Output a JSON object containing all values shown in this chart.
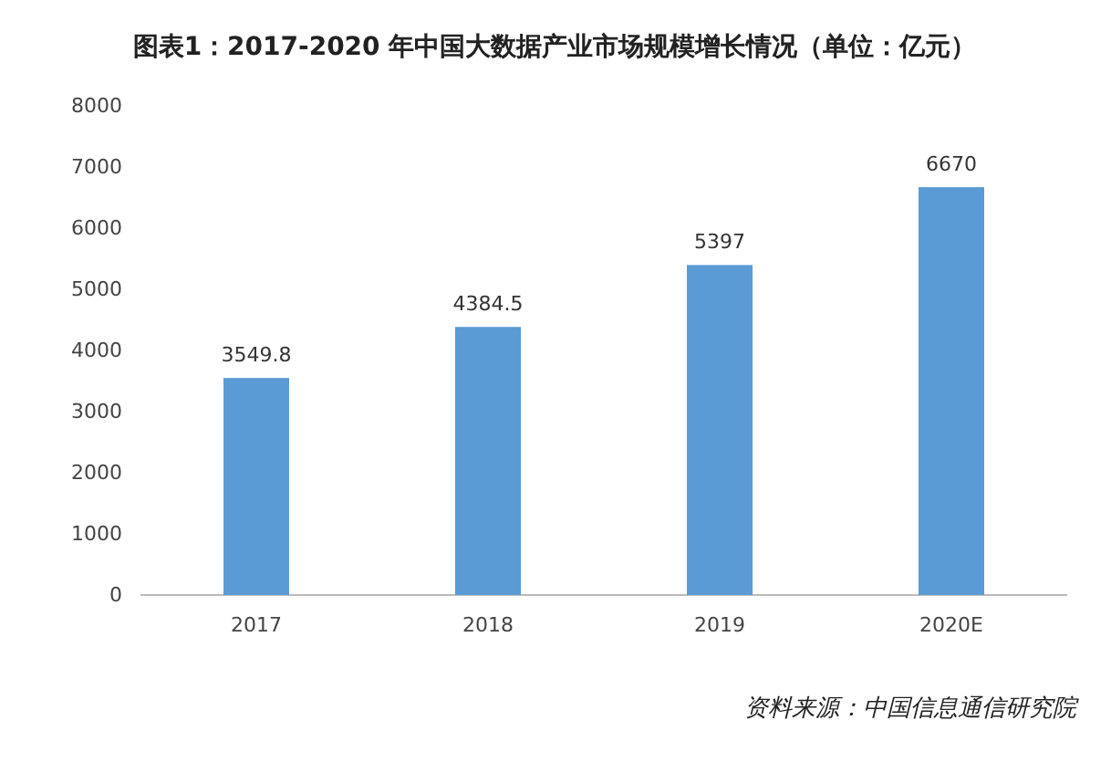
{
  "chart_data": {
    "type": "bar",
    "title": "图表1：2017-2020 年中国大数据产业市场规模增长情况（单位：亿元）",
    "categories": [
      "2017",
      "2018",
      "2019",
      "2020E"
    ],
    "values": [
      3549.8,
      4384.5,
      5397,
      6670
    ],
    "color": "#5b9bd5",
    "ylim": [
      0,
      8000
    ],
    "yticks": [
      0,
      1000,
      2000,
      3000,
      4000,
      5000,
      6000,
      7000,
      8000
    ],
    "grid": false,
    "data_labels": true,
    "annotations": [
      "资料来源：中国信息通信研究院"
    ]
  }
}
